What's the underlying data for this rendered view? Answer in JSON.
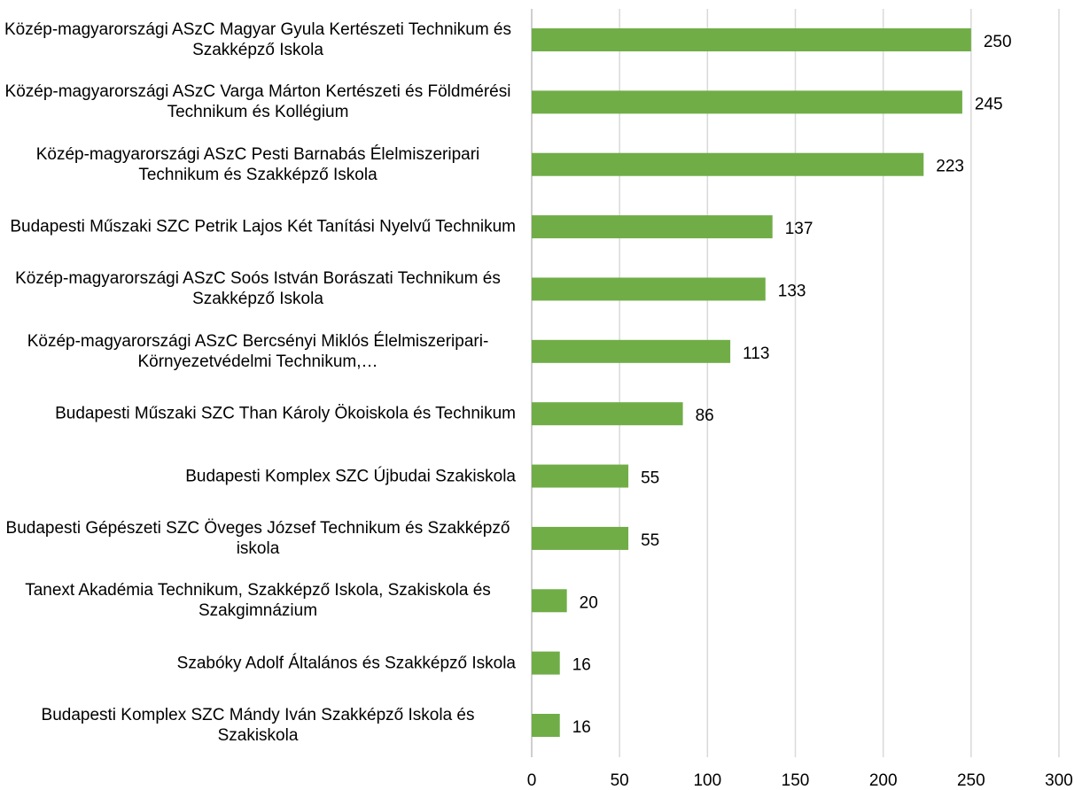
{
  "chart_data": {
    "type": "bar",
    "orientation": "horizontal",
    "categories": [
      "Közép-magyarországi ASzC Magyar Gyula Kertészeti Technikum és Szakképző Iskola",
      "Közép-magyarországi ASzC Varga Márton Kertészeti és Földmérési Technikum és Kollégium",
      "Közép-magyarországi ASzC Pesti Barnabás Élelmiszeripari Technikum és Szakképző Iskola",
      "Budapesti Műszaki SZC Petrik Lajos Két Tanítási Nyelvű Technikum",
      "Közép-magyarországi ASzC Soós István Borászati Technikum és Szakképző Iskola",
      "Közép-magyarországi ASzC Bercsényi Miklós Élelmiszeripari-Környezetvédelmi Technikum,…",
      "Budapesti Műszaki SZC Than Károly Ökoiskola és Technikum",
      "Budapesti Komplex SZC Újbudai Szakiskola",
      "Budapesti Gépészeti SZC Öveges József Technikum és Szakképző iskola",
      "Tanext Akadémia Technikum, Szakképző Iskola, Szakiskola és Szakgimnázium",
      "Szabóky Adolf Általános és Szakképző Iskola",
      "Budapesti Komplex SZC Mándy Iván Szakképző Iskola és Szakiskola"
    ],
    "values": [
      250,
      245,
      223,
      137,
      133,
      113,
      86,
      55,
      55,
      20,
      16,
      16
    ],
    "color": "#70ad47",
    "xlim": [
      0,
      300
    ],
    "xticks": [
      0,
      50,
      100,
      150,
      200,
      250,
      300
    ],
    "grid": true
  }
}
